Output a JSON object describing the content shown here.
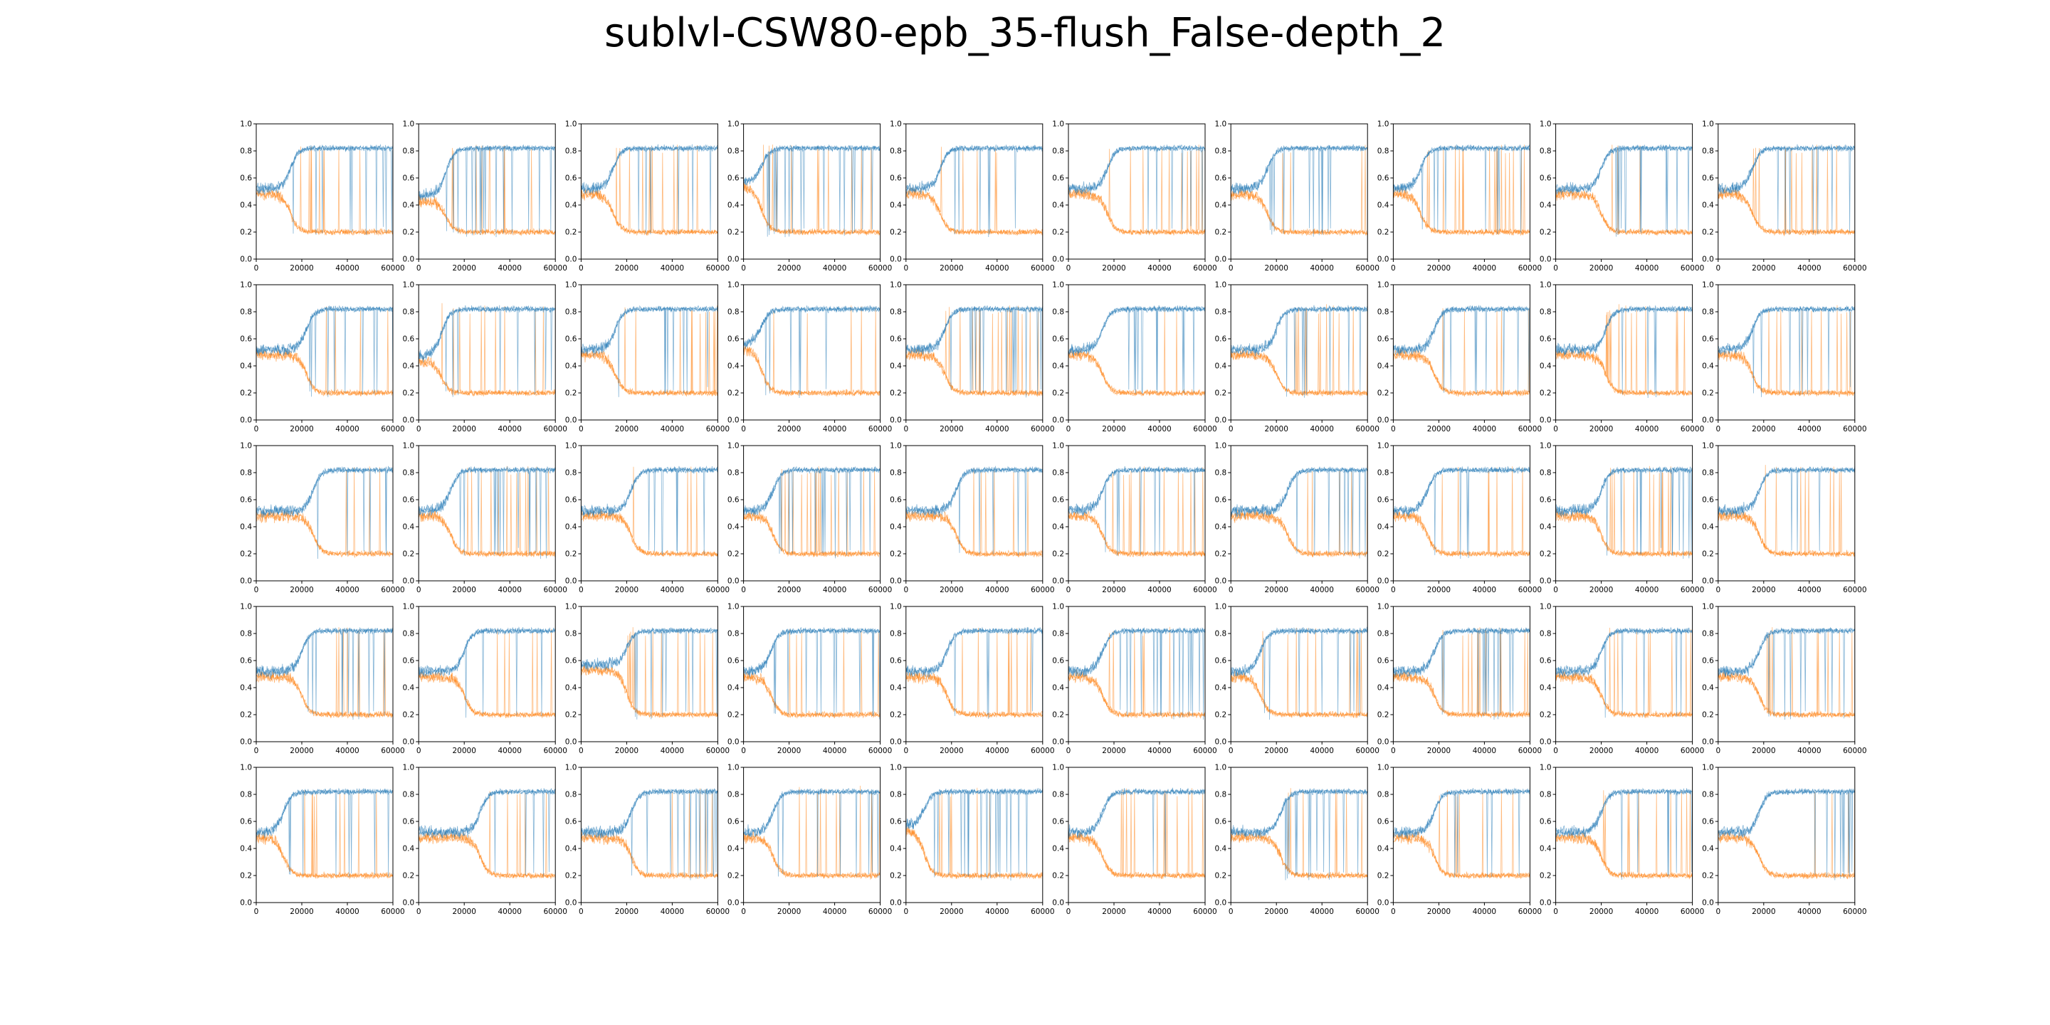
{
  "title": "sublvl-CSW80-epb_35-flush_False-depth_2",
  "colors": {
    "series_high": "#1f77b4",
    "series_low": "#ff7f0e",
    "axes": "#000000",
    "background": "#ffffff"
  },
  "chart_data": {
    "type": "line",
    "layout": {
      "rows": 5,
      "cols": 10
    },
    "xlim": [
      0,
      60000
    ],
    "ylim": [
      0.0,
      1.0
    ],
    "xticks": [
      0,
      20000,
      40000,
      60000
    ],
    "xtick_labels": [
      "0",
      "20000",
      "40000",
      "60000"
    ],
    "yticks": [
      0.0,
      0.2,
      0.4,
      0.6,
      0.8,
      1.0
    ],
    "ytick_labels": [
      "0.0",
      "0.2",
      "0.4",
      "0.6",
      "0.8",
      "1.0"
    ],
    "grid": false,
    "legend": "none",
    "subplot_transition_x": [
      [
        15000,
        12000,
        14000,
        8000,
        15000,
        17000,
        16000,
        12000,
        20000,
        15000
      ],
      [
        22000,
        10000,
        15000,
        8000,
        17000,
        15000,
        20000,
        18000,
        22000,
        15000
      ],
      [
        25000,
        14000,
        22000,
        13000,
        22000,
        15000,
        25000,
        15000,
        20000,
        18000
      ],
      [
        20000,
        20000,
        20000,
        12000,
        18000,
        15000,
        13000,
        18000,
        20000,
        18000
      ],
      [
        12000,
        27000,
        22000,
        13000,
        8000,
        15000,
        22000,
        18000,
        20000,
        18000
      ]
    ],
    "series_pre_level": [
      [
        0.5,
        0.45,
        0.5,
        0.55,
        0.5,
        0.5,
        0.5,
        0.5,
        0.5,
        0.5
      ],
      [
        0.5,
        0.45,
        0.5,
        0.55,
        0.5,
        0.5,
        0.5,
        0.5,
        0.5,
        0.5
      ],
      [
        0.5,
        0.5,
        0.5,
        0.5,
        0.5,
        0.5,
        0.5,
        0.5,
        0.5,
        0.5
      ],
      [
        0.5,
        0.5,
        0.55,
        0.5,
        0.5,
        0.5,
        0.5,
        0.5,
        0.5,
        0.5
      ],
      [
        0.5,
        0.5,
        0.5,
        0.5,
        0.55,
        0.5,
        0.5,
        0.5,
        0.5,
        0.5
      ]
    ],
    "series": [
      {
        "color_key": "series_high",
        "post_level": 0.82,
        "noise": 0.05
      },
      {
        "color_key": "series_low",
        "post_level": 0.2,
        "noise": 0.05
      }
    ]
  }
}
